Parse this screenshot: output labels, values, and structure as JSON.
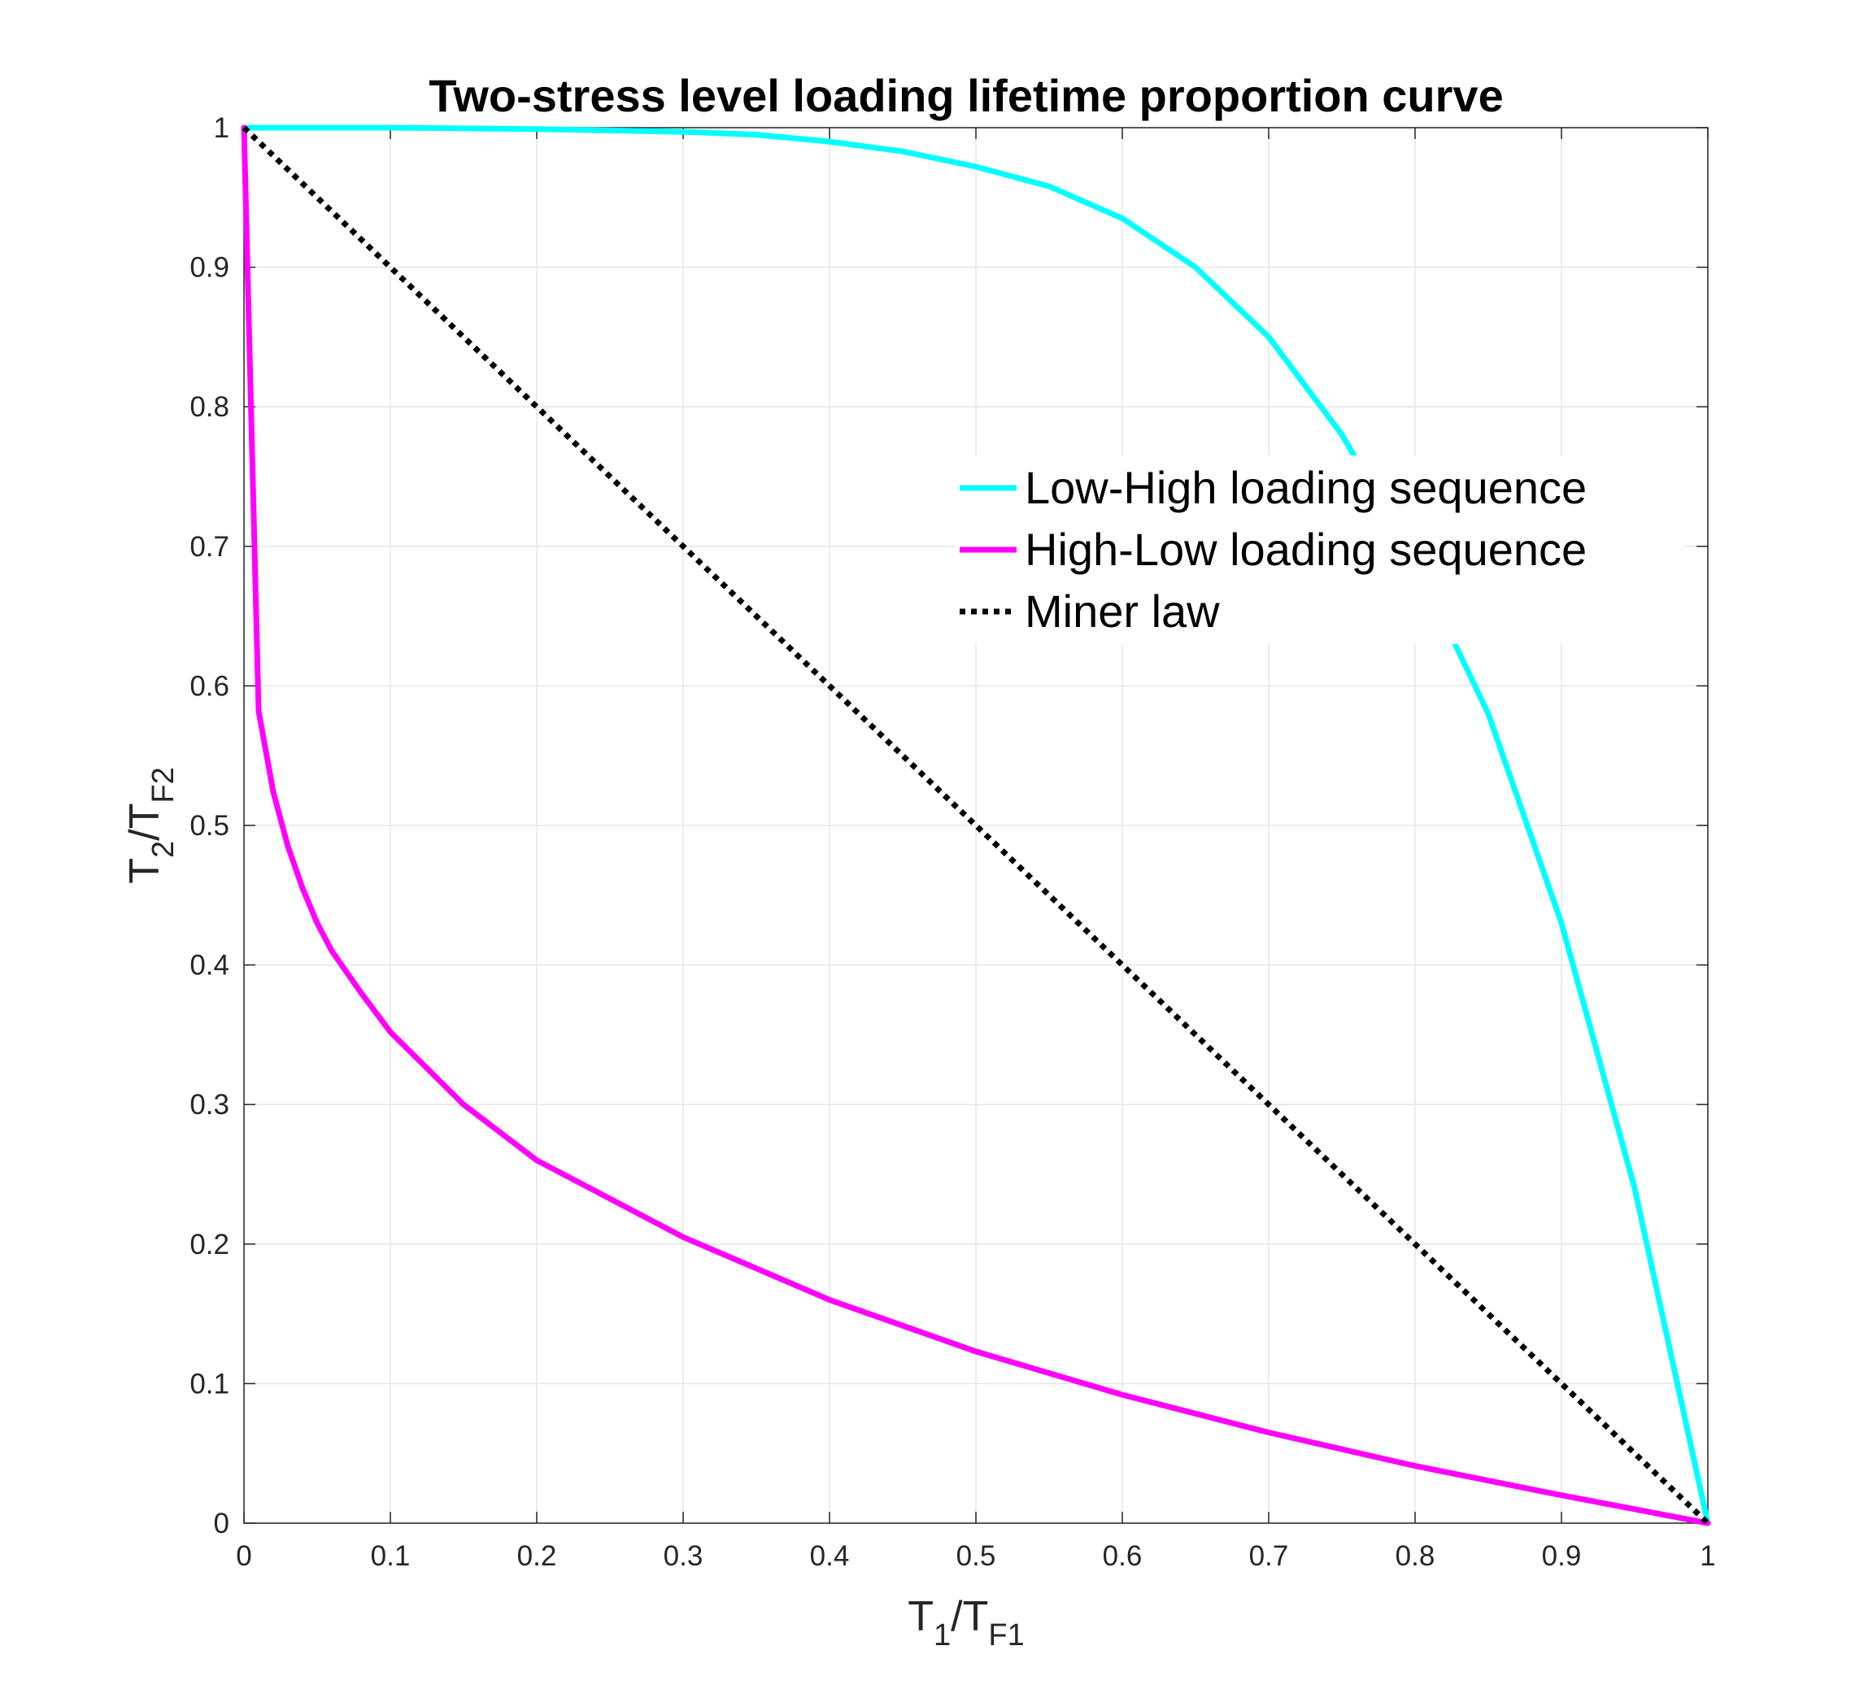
{
  "chart_data": {
    "type": "line",
    "title": "Two-stress level loading lifetime proportion curve",
    "xlabel": {
      "main1": "T",
      "sub1": "1",
      "sep": "/T",
      "sub2": "F1"
    },
    "ylabel": {
      "main1": "T",
      "sub1": "2",
      "sep": "/T",
      "sub2": "F2"
    },
    "xlim": [
      0,
      1
    ],
    "ylim": [
      0,
      1
    ],
    "xticks": [
      "0",
      "0.1",
      "0.2",
      "0.3",
      "0.4",
      "0.5",
      "0.6",
      "0.7",
      "0.8",
      "0.9",
      "1"
    ],
    "yticks": [
      "0",
      "0.1",
      "0.2",
      "0.3",
      "0.4",
      "0.5",
      "0.6",
      "0.7",
      "0.8",
      "0.9",
      "1"
    ],
    "grid": true,
    "legend_position": "right",
    "series": [
      {
        "name": "Low-High loading sequence",
        "color": "#00FFFF",
        "style": "solid",
        "x": [
          0,
          0.1,
          0.2,
          0.3,
          0.35,
          0.4,
          0.45,
          0.5,
          0.55,
          0.6,
          0.65,
          0.7,
          0.75,
          0.8,
          0.85,
          0.9,
          0.95,
          1.0
        ],
        "y": [
          1.0,
          1.0,
          0.999,
          0.997,
          0.995,
          0.99,
          0.983,
          0.972,
          0.958,
          0.935,
          0.9,
          0.85,
          0.78,
          0.69,
          0.58,
          0.43,
          0.24,
          0.0
        ]
      },
      {
        "name": "High-Low loading sequence",
        "color": "#FF00FF",
        "style": "solid",
        "x": [
          0,
          0.01,
          0.02,
          0.03,
          0.04,
          0.05,
          0.06,
          0.08,
          0.1,
          0.15,
          0.2,
          0.3,
          0.4,
          0.5,
          0.6,
          0.7,
          0.8,
          0.9,
          1.0
        ],
        "y": [
          1.0,
          0.582,
          0.524,
          0.485,
          0.455,
          0.43,
          0.41,
          0.38,
          0.352,
          0.3,
          0.26,
          0.205,
          0.16,
          0.123,
          0.092,
          0.065,
          0.041,
          0.02,
          0.0
        ]
      },
      {
        "name": "Miner law",
        "color": "#000000",
        "style": "dotted",
        "x": [
          0,
          1
        ],
        "y": [
          1,
          0
        ]
      }
    ]
  }
}
